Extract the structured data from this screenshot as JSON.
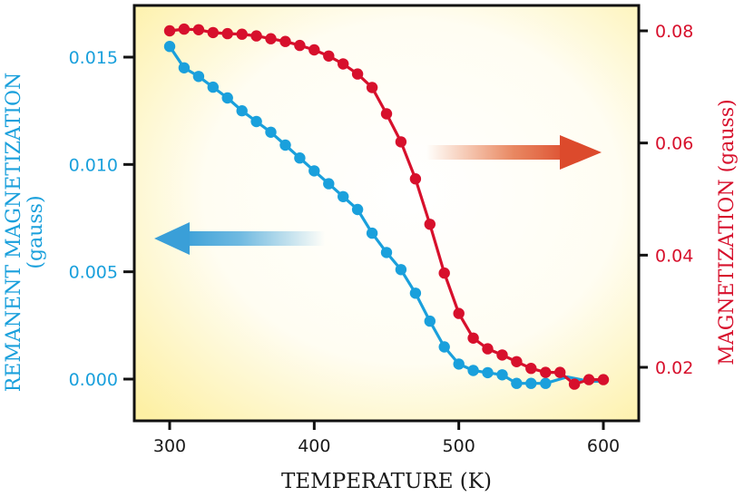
{
  "chart_data": {
    "type": "line",
    "title": "",
    "xlabel": "TEMPERATURE (K)",
    "ylabel_left": "REMANENT MAGNETIZATION",
    "ylabel_left_unit": "(gauss)",
    "ylabel_right": "MAGNETIZATION (gauss)",
    "xlim": [
      275,
      630
    ],
    "ylim_left": [
      -0.0015,
      0.0172
    ],
    "ylim_right": [
      0.0105,
      0.086
    ],
    "x_ticks": [
      "300",
      "400",
      "500",
      "600"
    ],
    "x_tick_values": [
      300,
      400,
      500,
      600
    ],
    "y_left_ticks": [
      "0.000",
      "0.005",
      "0.010",
      "0.015"
    ],
    "y_left_tick_values": [
      0.0,
      0.005,
      0.01,
      0.015
    ],
    "y_right_ticks": [
      "0.02",
      "0.04",
      "0.06",
      "0.08"
    ],
    "y_right_tick_values": [
      0.02,
      0.04,
      0.06,
      0.08
    ],
    "grid": false,
    "legend": "none",
    "colors": {
      "remanent": "#1aa0dc",
      "magnetization": "#d7102c",
      "axis": "#111111",
      "bg_corner": "#fdf0a0"
    },
    "annotations": [
      {
        "type": "arrow",
        "direction": "left",
        "color": "#4aa8dc",
        "meaning": "points to left axis (remanent magnetization)"
      },
      {
        "type": "arrow",
        "direction": "right",
        "color": "#e04a2a",
        "meaning": "points to right axis (magnetization)"
      }
    ],
    "series": [
      {
        "name": "Remanent magnetization",
        "axis": "left",
        "x": [
          300,
          310,
          320,
          330,
          340,
          350,
          360,
          370,
          380,
          390,
          400,
          410,
          420,
          430,
          440,
          450,
          460,
          470,
          480,
          490,
          500,
          510,
          520,
          530,
          540,
          550,
          560
        ],
        "values": [
          0.0155,
          0.0145,
          0.0141,
          0.0136,
          0.0131,
          0.0125,
          0.012,
          0.0115,
          0.0109,
          0.0103,
          0.0097,
          0.0091,
          0.0085,
          0.0079,
          0.0068,
          0.0059,
          0.0051,
          0.004,
          0.0027,
          0.0015,
          0.0007,
          0.0004,
          0.0003,
          0.0002,
          -0.0002,
          -0.0002,
          -0.0002
        ],
        "line_tail": {
          "x": [
            560,
            575,
            590,
            600
          ],
          "values": [
            -0.0002,
            0.0001,
            -0.0001,
            -0.0001
          ]
        }
      },
      {
        "name": "Magnetization",
        "axis": "right",
        "x": [
          300,
          310,
          320,
          330,
          340,
          350,
          360,
          370,
          380,
          390,
          400,
          410,
          420,
          430,
          440,
          450,
          460,
          470,
          480,
          490,
          500,
          510,
          520,
          530,
          540,
          550,
          560,
          570,
          580,
          590,
          600
        ],
        "values": [
          0.08,
          0.0803,
          0.0802,
          0.0797,
          0.0795,
          0.0794,
          0.0791,
          0.0786,
          0.0781,
          0.0774,
          0.0766,
          0.0755,
          0.0741,
          0.0723,
          0.0699,
          0.0652,
          0.0602,
          0.0536,
          0.0455,
          0.0368,
          0.0296,
          0.0252,
          0.0233,
          0.0222,
          0.021,
          0.0198,
          0.0191,
          0.0191,
          0.017,
          0.0178,
          0.0178
        ]
      }
    ]
  }
}
